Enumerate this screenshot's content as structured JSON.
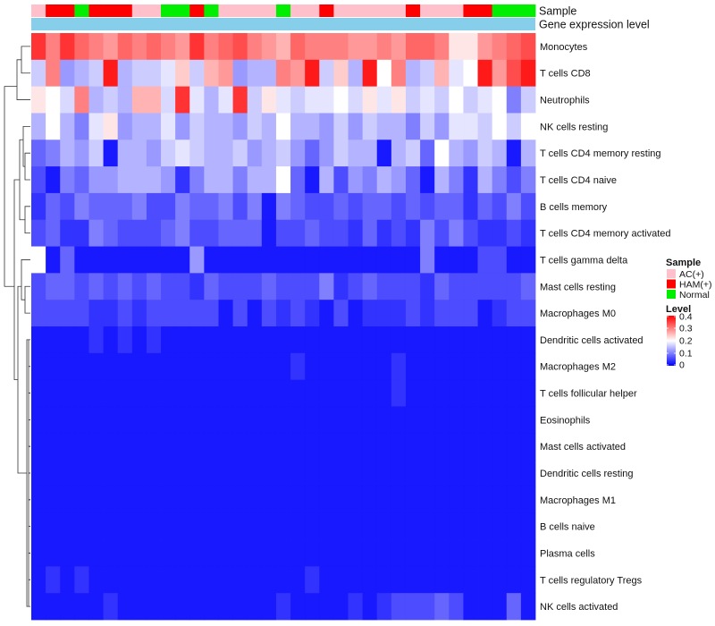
{
  "chart_data": {
    "type": "heatmap",
    "title": "",
    "annotations": {
      "sample_label": "Sample",
      "expression_label": "Gene expression level",
      "sample_groups": [
        "AC(+)",
        "HAM(+)",
        "HAM(+)",
        "Normal",
        "HAM(+)",
        "HAM(+)",
        "HAM(+)",
        "AC(+)",
        "AC(+)",
        "Normal",
        "Normal",
        "HAM(+)",
        "Normal",
        "AC(+)",
        "AC(+)",
        "AC(+)",
        "AC(+)",
        "Normal",
        "AC(+)",
        "AC(+)",
        "HAM(+)",
        "AC(+)",
        "AC(+)",
        "AC(+)",
        "AC(+)",
        "AC(+)",
        "HAM(+)",
        "AC(+)",
        "AC(+)",
        "AC(+)",
        "HAM(+)",
        "HAM(+)",
        "Normal",
        "Normal",
        "Normal"
      ]
    },
    "rows": [
      "Monocytes",
      "T cells CD8",
      "Neutrophils",
      "NK cells resting",
      "T cells CD4 memory resting",
      "T cells CD4 naive",
      "B cells memory",
      "T cells CD4 memory activated",
      "T cells gamma delta",
      "Mast cells resting",
      "Macrophages M0",
      "Dendritic cells activated",
      "Macrophages M2",
      "T cells follicular helper",
      "Eosinophils",
      "Mast cells activated",
      "Dendritic cells resting",
      "Macrophages M1",
      "B cells naive",
      "Plasma cells",
      "T cells regulatory  Tregs",
      "NK cells activated"
    ],
    "values": [
      [
        0.36,
        0.3,
        0.36,
        0.32,
        0.3,
        0.28,
        0.32,
        0.3,
        0.32,
        0.3,
        0.28,
        0.36,
        0.3,
        0.32,
        0.34,
        0.3,
        0.28,
        0.26,
        0.32,
        0.3,
        0.3,
        0.3,
        0.28,
        0.28,
        0.3,
        0.28,
        0.32,
        0.32,
        0.3,
        0.22,
        0.22,
        0.28,
        0.3,
        0.32,
        0.34
      ],
      [
        0.16,
        0.3,
        0.12,
        0.14,
        0.16,
        0.38,
        0.14,
        0.16,
        0.16,
        0.18,
        0.24,
        0.16,
        0.26,
        0.28,
        0.12,
        0.14,
        0.14,
        0.3,
        0.28,
        0.38,
        0.16,
        0.24,
        0.14,
        0.38,
        0.2,
        0.3,
        0.14,
        0.16,
        0.26,
        0.18,
        0.2,
        0.38,
        0.28,
        0.34,
        0.38
      ],
      [
        0.22,
        0.2,
        0.17,
        0.3,
        0.14,
        0.16,
        0.14,
        0.26,
        0.26,
        0.17,
        0.36,
        0.18,
        0.14,
        0.18,
        0.36,
        0.16,
        0.22,
        0.18,
        0.16,
        0.18,
        0.18,
        0.2,
        0.17,
        0.22,
        0.18,
        0.22,
        0.16,
        0.18,
        0.16,
        0.2,
        0.16,
        0.18,
        0.2,
        0.1,
        0.16
      ],
      [
        0.14,
        0.2,
        0.14,
        0.1,
        0.18,
        0.22,
        0.12,
        0.14,
        0.14,
        0.18,
        0.12,
        0.16,
        0.14,
        0.14,
        0.12,
        0.16,
        0.14,
        0.2,
        0.14,
        0.14,
        0.12,
        0.16,
        0.12,
        0.16,
        0.14,
        0.14,
        0.1,
        0.16,
        0.12,
        0.18,
        0.18,
        0.16,
        0.2,
        0.16,
        0.2
      ],
      [
        0.08,
        0.1,
        0.14,
        0.12,
        0.16,
        0.02,
        0.14,
        0.14,
        0.12,
        0.16,
        0.18,
        0.16,
        0.14,
        0.14,
        0.16,
        0.12,
        0.14,
        0.16,
        0.12,
        0.08,
        0.12,
        0.16,
        0.14,
        0.14,
        0.02,
        0.14,
        0.16,
        0.08,
        0.2,
        0.14,
        0.12,
        0.16,
        0.14,
        0.02,
        0.14
      ],
      [
        0.06,
        0.02,
        0.1,
        0.08,
        0.12,
        0.12,
        0.14,
        0.14,
        0.14,
        0.12,
        0.04,
        0.1,
        0.14,
        0.14,
        0.1,
        0.14,
        0.14,
        0.2,
        0.08,
        0.02,
        0.14,
        0.06,
        0.12,
        0.1,
        0.14,
        0.12,
        0.08,
        0.02,
        0.14,
        0.1,
        0.04,
        0.14,
        0.1,
        0.06,
        0.1
      ],
      [
        0.04,
        0.08,
        0.06,
        0.1,
        0.08,
        0.08,
        0.08,
        0.1,
        0.06,
        0.06,
        0.1,
        0.08,
        0.08,
        0.1,
        0.06,
        0.1,
        0.02,
        0.1,
        0.08,
        0.06,
        0.06,
        0.08,
        0.06,
        0.08,
        0.08,
        0.06,
        0.08,
        0.06,
        0.08,
        0.08,
        0.04,
        0.08,
        0.06,
        0.1,
        0.06
      ],
      [
        0.06,
        0.08,
        0.04,
        0.04,
        0.1,
        0.08,
        0.06,
        0.06,
        0.06,
        0.08,
        0.1,
        0.06,
        0.06,
        0.08,
        0.08,
        0.08,
        0.02,
        0.06,
        0.06,
        0.08,
        0.06,
        0.06,
        0.04,
        0.08,
        0.04,
        0.06,
        0.04,
        0.1,
        0.06,
        0.1,
        0.06,
        0.04,
        0.04,
        0.06,
        0.04
      ],
      [
        0.2,
        0.02,
        0.08,
        0.02,
        0.02,
        0.02,
        0.02,
        0.02,
        0.02,
        0.02,
        0.02,
        0.12,
        0.02,
        0.02,
        0.02,
        0.02,
        0.02,
        0.02,
        0.02,
        0.02,
        0.02,
        0.02,
        0.02,
        0.02,
        0.02,
        0.02,
        0.02,
        0.1,
        0.02,
        0.02,
        0.02,
        0.06,
        0.06,
        0.02,
        0.02
      ],
      [
        0.06,
        0.08,
        0.08,
        0.06,
        0.08,
        0.06,
        0.08,
        0.06,
        0.08,
        0.06,
        0.06,
        0.04,
        0.08,
        0.06,
        0.06,
        0.06,
        0.08,
        0.06,
        0.06,
        0.06,
        0.1,
        0.04,
        0.06,
        0.08,
        0.06,
        0.06,
        0.06,
        0.04,
        0.08,
        0.06,
        0.06,
        0.06,
        0.06,
        0.06,
        0.08
      ],
      [
        0.06,
        0.06,
        0.06,
        0.06,
        0.04,
        0.04,
        0.06,
        0.04,
        0.06,
        0.06,
        0.06,
        0.06,
        0.06,
        0.02,
        0.06,
        0.02,
        0.06,
        0.04,
        0.06,
        0.04,
        0.02,
        0.06,
        0.02,
        0.04,
        0.04,
        0.04,
        0.06,
        0.04,
        0.06,
        0.06,
        0.06,
        0.02,
        0.04,
        0.06,
        0.06
      ],
      [
        0.02,
        0.02,
        0.02,
        0.02,
        0.04,
        0.02,
        0.04,
        0.02,
        0.04,
        0.02,
        0.02,
        0.02,
        0.02,
        0.02,
        0.02,
        0.02,
        0.02,
        0.02,
        0.02,
        0.02,
        0.02,
        0.02,
        0.02,
        0.02,
        0.02,
        0.02,
        0.02,
        0.02,
        0.02,
        0.02,
        0.02,
        0.02,
        0.02,
        0.02,
        0.02
      ],
      [
        0.02,
        0.02,
        0.02,
        0.02,
        0.02,
        0.02,
        0.02,
        0.02,
        0.02,
        0.02,
        0.02,
        0.02,
        0.02,
        0.02,
        0.02,
        0.02,
        0.02,
        0.02,
        0.04,
        0.02,
        0.02,
        0.02,
        0.02,
        0.02,
        0.02,
        0.04,
        0.02,
        0.02,
        0.02,
        0.02,
        0.02,
        0.02,
        0.02,
        0.02,
        0.02
      ],
      [
        0.02,
        0.02,
        0.02,
        0.02,
        0.02,
        0.02,
        0.02,
        0.02,
        0.02,
        0.02,
        0.02,
        0.02,
        0.02,
        0.02,
        0.02,
        0.02,
        0.02,
        0.02,
        0.02,
        0.02,
        0.02,
        0.02,
        0.02,
        0.02,
        0.02,
        0.04,
        0.02,
        0.02,
        0.02,
        0.02,
        0.02,
        0.02,
        0.02,
        0.02,
        0.02
      ],
      [
        0.02,
        0.02,
        0.02,
        0.02,
        0.02,
        0.02,
        0.02,
        0.02,
        0.02,
        0.02,
        0.02,
        0.02,
        0.02,
        0.02,
        0.02,
        0.02,
        0.02,
        0.02,
        0.02,
        0.02,
        0.02,
        0.02,
        0.02,
        0.02,
        0.02,
        0.02,
        0.02,
        0.02,
        0.02,
        0.02,
        0.02,
        0.02,
        0.02,
        0.02,
        0.02
      ],
      [
        0.02,
        0.02,
        0.02,
        0.02,
        0.02,
        0.02,
        0.02,
        0.02,
        0.02,
        0.02,
        0.02,
        0.02,
        0.02,
        0.02,
        0.02,
        0.02,
        0.02,
        0.02,
        0.02,
        0.02,
        0.02,
        0.02,
        0.02,
        0.02,
        0.02,
        0.02,
        0.02,
        0.02,
        0.02,
        0.02,
        0.02,
        0.02,
        0.02,
        0.02,
        0.02
      ],
      [
        0.02,
        0.02,
        0.02,
        0.02,
        0.02,
        0.02,
        0.02,
        0.02,
        0.02,
        0.02,
        0.02,
        0.02,
        0.02,
        0.02,
        0.02,
        0.02,
        0.02,
        0.02,
        0.02,
        0.02,
        0.02,
        0.02,
        0.02,
        0.02,
        0.02,
        0.02,
        0.02,
        0.02,
        0.02,
        0.02,
        0.02,
        0.02,
        0.02,
        0.02,
        0.02
      ],
      [
        0.02,
        0.02,
        0.02,
        0.02,
        0.02,
        0.02,
        0.02,
        0.02,
        0.02,
        0.02,
        0.02,
        0.02,
        0.02,
        0.02,
        0.02,
        0.02,
        0.02,
        0.02,
        0.02,
        0.02,
        0.02,
        0.02,
        0.02,
        0.02,
        0.02,
        0.02,
        0.02,
        0.02,
        0.02,
        0.02,
        0.02,
        0.02,
        0.02,
        0.02,
        0.02
      ],
      [
        0.02,
        0.02,
        0.02,
        0.02,
        0.02,
        0.02,
        0.02,
        0.02,
        0.02,
        0.02,
        0.02,
        0.02,
        0.02,
        0.02,
        0.02,
        0.02,
        0.02,
        0.02,
        0.02,
        0.02,
        0.02,
        0.02,
        0.02,
        0.02,
        0.02,
        0.02,
        0.02,
        0.02,
        0.02,
        0.02,
        0.02,
        0.02,
        0.02,
        0.02,
        0.02
      ],
      [
        0.02,
        0.02,
        0.02,
        0.02,
        0.02,
        0.02,
        0.02,
        0.02,
        0.02,
        0.02,
        0.02,
        0.02,
        0.02,
        0.02,
        0.02,
        0.02,
        0.02,
        0.02,
        0.02,
        0.02,
        0.02,
        0.02,
        0.02,
        0.02,
        0.02,
        0.02,
        0.02,
        0.02,
        0.02,
        0.02,
        0.02,
        0.02,
        0.02,
        0.02,
        0.02
      ],
      [
        0.02,
        0.04,
        0.02,
        0.04,
        0.02,
        0.02,
        0.02,
        0.02,
        0.02,
        0.02,
        0.02,
        0.02,
        0.02,
        0.02,
        0.02,
        0.02,
        0.02,
        0.02,
        0.02,
        0.04,
        0.02,
        0.02,
        0.02,
        0.02,
        0.02,
        0.02,
        0.02,
        0.02,
        0.02,
        0.02,
        0.02,
        0.02,
        0.02,
        0.02,
        0.02
      ],
      [
        0.02,
        0.02,
        0.02,
        0.02,
        0.02,
        0.04,
        0.02,
        0.02,
        0.02,
        0.02,
        0.02,
        0.02,
        0.02,
        0.02,
        0.02,
        0.02,
        0.02,
        0.04,
        0.02,
        0.02,
        0.02,
        0.02,
        0.04,
        0.02,
        0.04,
        0.06,
        0.06,
        0.06,
        0.08,
        0.06,
        0.02,
        0.02,
        0.02,
        0.08,
        0.02
      ]
    ],
    "legend": {
      "sample_title": "Sample",
      "sample_entries": [
        {
          "label": "AC(+)",
          "color": "#ffc0cb"
        },
        {
          "label": "HAM(+)",
          "color": "#ff0000"
        },
        {
          "label": "Normal",
          "color": "#00ee00"
        }
      ],
      "level_title": "Level",
      "level_ticks": [
        "0.4",
        "0.3",
        "0.2",
        "0.1",
        "0"
      ],
      "level_range": [
        0,
        0.4
      ],
      "placement": "right"
    },
    "colors": {
      "low": "#0000ff",
      "mid": "#ffffff",
      "high": "#ff0000",
      "expression_bar": "#87ceeb"
    }
  }
}
